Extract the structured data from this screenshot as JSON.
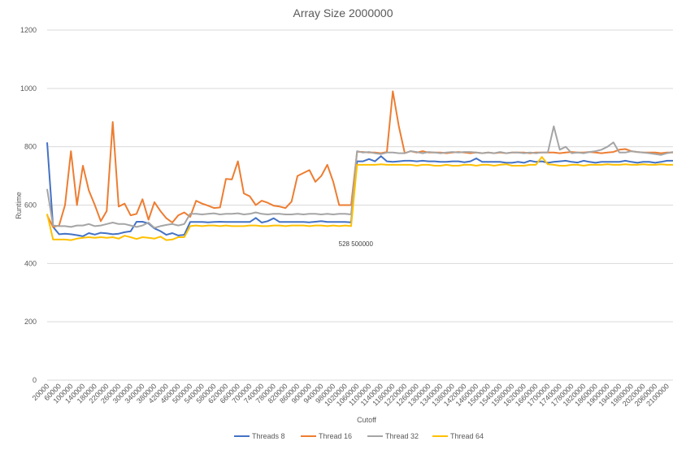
{
  "chart_data": {
    "type": "line",
    "title": "Array Size 2000000",
    "xlabel": "Cutoff",
    "ylabel": "Runtime",
    "ylim": [
      0,
      1200
    ],
    "yticks": [
      0,
      200,
      400,
      600,
      800,
      1000,
      1200
    ],
    "grid": true,
    "legend_position": "bottom",
    "x_start": 20000,
    "x_step": 20000,
    "x_tick_every": 2,
    "annotation": {
      "text": "528 500000",
      "series": "Thread 64",
      "index": 23
    },
    "series": [
      {
        "name": "Threads 8",
        "color": "#4472C4",
        "values": [
          815,
          525,
          500,
          502,
          500,
          497,
          493,
          504,
          499,
          505,
          503,
          500,
          502,
          507,
          510,
          543,
          543,
          537,
          520,
          511,
          498,
          504,
          496,
          498,
          542,
          542,
          542,
          541,
          542,
          543,
          542,
          542,
          542,
          542,
          542,
          556,
          540,
          545,
          555,
          542,
          542,
          542,
          542,
          542,
          541,
          543,
          545,
          542,
          542,
          542,
          542,
          541,
          750,
          750,
          758,
          750,
          768,
          750,
          748,
          750,
          752,
          752,
          750,
          752,
          750,
          750,
          748,
          748,
          750,
          750,
          747,
          750,
          760,
          748,
          748,
          748,
          748,
          745,
          745,
          748,
          745,
          752,
          748,
          750,
          745,
          748,
          750,
          752,
          748,
          746,
          752,
          748,
          745,
          748,
          748,
          748,
          748,
          752,
          748,
          745,
          748,
          748,
          745,
          748,
          752,
          752
        ]
      },
      {
        "name": "Thread 16",
        "color": "#ED7D31",
        "values": [
          565,
          525,
          530,
          600,
          785,
          600,
          735,
          650,
          600,
          545,
          580,
          885,
          595,
          605,
          565,
          570,
          620,
          550,
          610,
          580,
          555,
          540,
          565,
          575,
          560,
          615,
          605,
          598,
          590,
          592,
          690,
          688,
          750,
          640,
          630,
          600,
          615,
          608,
          598,
          595,
          590,
          612,
          700,
          710,
          720,
          680,
          700,
          738,
          680,
          600,
          600,
          600,
          783,
          782,
          780,
          780,
          778,
          782,
          990,
          870,
          778,
          785,
          780,
          785,
          780,
          780,
          780,
          778,
          780,
          782,
          780,
          778,
          780,
          778,
          780,
          778,
          780,
          778,
          780,
          780,
          780,
          778,
          780,
          780,
          780,
          780,
          778,
          780,
          782,
          780,
          780,
          782,
          780,
          778,
          780,
          782,
          790,
          792,
          785,
          782,
          780,
          780,
          780,
          778,
          780,
          780
        ]
      },
      {
        "name": "Thread 32",
        "color": "#A5A5A5",
        "values": [
          655,
          530,
          528,
          528,
          525,
          530,
          530,
          535,
          528,
          530,
          535,
          540,
          535,
          535,
          530,
          525,
          530,
          540,
          522,
          528,
          532,
          535,
          530,
          535,
          570,
          570,
          568,
          570,
          572,
          568,
          570,
          570,
          572,
          568,
          570,
          575,
          570,
          568,
          570,
          570,
          568,
          568,
          570,
          568,
          570,
          570,
          568,
          570,
          568,
          570,
          570,
          568,
          785,
          780,
          782,
          778,
          775,
          780,
          780,
          778,
          778,
          785,
          782,
          778,
          782,
          780,
          778,
          780,
          782,
          780,
          782,
          782,
          780,
          778,
          780,
          778,
          782,
          778,
          780,
          780,
          778,
          780,
          778,
          780,
          780,
          870,
          790,
          800,
          778,
          780,
          778,
          782,
          785,
          790,
          800,
          815,
          780,
          780,
          785,
          782,
          780,
          778,
          775,
          772,
          778,
          782
        ]
      },
      {
        "name": "Thread 64",
        "color": "#FFC000",
        "values": [
          570,
          482,
          482,
          482,
          480,
          485,
          488,
          490,
          488,
          490,
          488,
          490,
          485,
          495,
          490,
          484,
          490,
          488,
          485,
          492,
          480,
          482,
          490,
          490,
          528,
          530,
          528,
          530,
          530,
          528,
          530,
          528,
          528,
          528,
          530,
          530,
          528,
          528,
          530,
          530,
          528,
          530,
          530,
          530,
          528,
          530,
          530,
          528,
          530,
          528,
          530,
          528,
          738,
          738,
          738,
          738,
          740,
          738,
          738,
          738,
          738,
          738,
          735,
          738,
          738,
          735,
          735,
          738,
          735,
          735,
          738,
          738,
          735,
          738,
          738,
          735,
          738,
          740,
          735,
          735,
          735,
          738,
          738,
          765,
          740,
          738,
          735,
          735,
          738,
          738,
          735,
          738,
          738,
          738,
          740,
          738,
          738,
          740,
          738,
          738,
          740,
          738,
          738,
          740,
          738,
          738
        ]
      }
    ]
  }
}
